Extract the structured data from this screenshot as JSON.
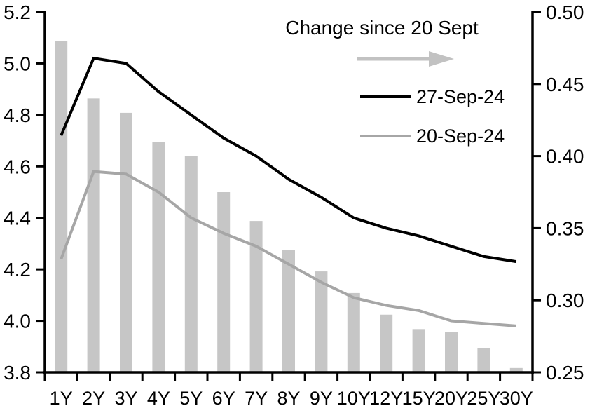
{
  "chart_data": {
    "type": "combo-bar-line",
    "title": "",
    "categories": [
      "1Y",
      "2Y",
      "3Y",
      "4Y",
      "5Y",
      "6Y",
      "7Y",
      "8Y",
      "9Y",
      "10Y",
      "12Y",
      "15Y",
      "20Y",
      "25Y",
      "30Y"
    ],
    "series": [
      {
        "name": "Change since 20 Sept",
        "type": "bar",
        "axis": "right",
        "color": "#c6c6c6",
        "values": [
          0.48,
          0.44,
          0.43,
          0.41,
          0.4,
          0.375,
          0.355,
          0.335,
          0.32,
          0.305,
          0.29,
          0.28,
          0.278,
          0.267,
          0.253
        ]
      },
      {
        "name": "27-Sep-24",
        "type": "line",
        "axis": "left",
        "color": "#000000",
        "values": [
          4.72,
          5.02,
          5.0,
          4.89,
          4.8,
          4.71,
          4.64,
          4.55,
          4.48,
          4.4,
          4.36,
          4.33,
          4.29,
          4.25,
          4.23
        ]
      },
      {
        "name": "20-Sep-24",
        "type": "line",
        "axis": "left",
        "color": "#a6a6a6",
        "values": [
          4.24,
          4.58,
          4.57,
          4.5,
          4.4,
          4.34,
          4.29,
          4.22,
          4.15,
          4.09,
          4.06,
          4.04,
          4.0,
          3.99,
          3.98
        ]
      }
    ],
    "left_axis": {
      "min": 3.8,
      "max": 5.2,
      "tick_labels": [
        "5.2",
        "5.0",
        "4.8",
        "4.6",
        "4.4",
        "4.2",
        "4.0",
        "3.8"
      ]
    },
    "right_axis": {
      "min": 0.25,
      "max": 0.5,
      "tick_labels": [
        "0.50",
        "0.45",
        "0.40",
        "0.35",
        "0.30",
        "0.25"
      ]
    },
    "grid": false,
    "legend_position": "inside-top-right",
    "arrow_color": "#c2c2c2"
  }
}
